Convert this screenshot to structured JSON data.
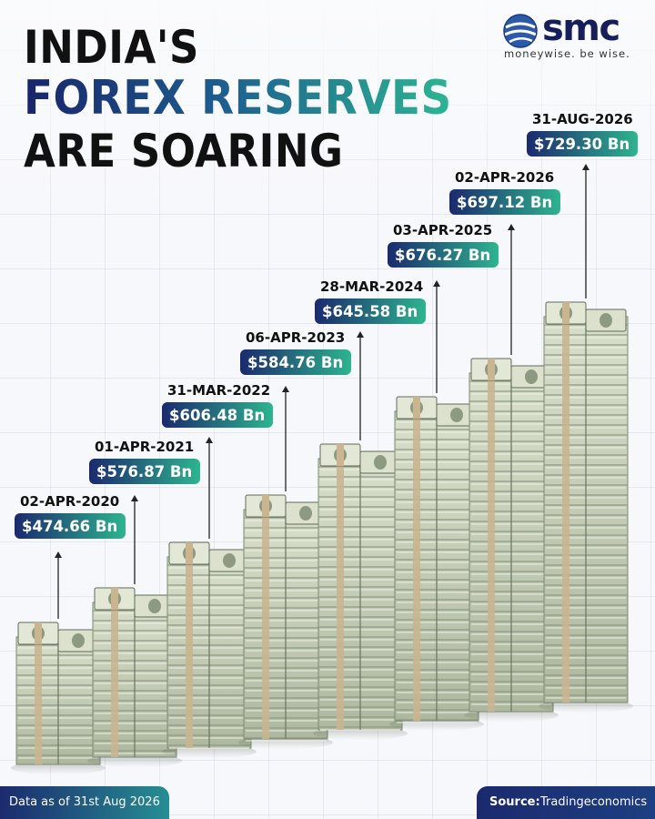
{
  "header": {
    "title_line1": "INDIA'S",
    "title_line2": "FOREX RESERVES",
    "title_line3": "ARE SOARING"
  },
  "logo": {
    "name": "smc",
    "tagline": "moneywise. be wise.",
    "colors": {
      "globe": "#2d5aa8",
      "text": "#15205a"
    }
  },
  "chart_data": {
    "type": "bar",
    "title": "INDIA'S FOREX RESERVES ARE SOARING",
    "categories": [
      "02-APR-2020",
      "01-APR-2021",
      "31-MAR-2022",
      "06-APR-2023",
      "28-MAR-2024",
      "03-APR-2025",
      "02-APR-2026",
      "31-AUG-2026"
    ],
    "series": [
      {
        "values": [
          474.66,
          576.87,
          606.48,
          584.76,
          645.58,
          676.27,
          697.12,
          729.3
        ]
      }
    ],
    "value_labels": [
      "$474.66 Bn",
      "$576.87 Bn",
      "$606.48 Bn",
      "$584.76 Bn",
      "$645.58 Bn",
      "$676.27 Bn",
      "$697.12 Bn",
      "$729.30 Bn"
    ],
    "unit": "Bn",
    "bar_style": "stacks of dollar bills",
    "colors": {
      "pill_start": "#1b2a6e",
      "pill_end": "#2eb48f",
      "bill": "#bfc8b0",
      "bill_dark": "#7d8a73",
      "band": "#c9b590"
    }
  },
  "footer": {
    "data_note": "Data as of 31st Aug 2026",
    "source_label": "Source:",
    "source_value": "Tradingeconomics"
  }
}
